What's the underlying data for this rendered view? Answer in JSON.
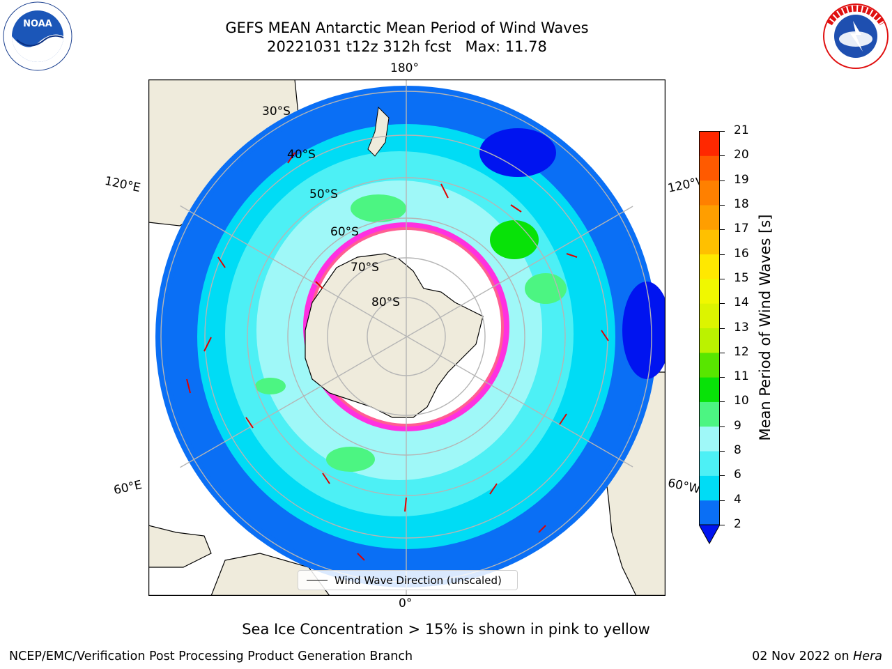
{
  "header": {
    "title_line1": "GEFS MEAN Antarctic Mean Period of Wind Waves",
    "title_line2": "20221031 t12z 312h fcst",
    "max_label": "Max: 11.78"
  },
  "logos": {
    "left": "NOAA",
    "right": "NATIONAL WEATHER SERVICE"
  },
  "map": {
    "longitude_labels": {
      "top": "180°",
      "bottom": "0°",
      "upper_left": "120°E",
      "lower_left": "60°E",
      "upper_right": "120°W",
      "lower_right": "60°W"
    },
    "latitude_labels": [
      "30°S",
      "40°S",
      "50°S",
      "60°S",
      "70°S",
      "80°S"
    ],
    "legend_label": "Wind Wave Direction (unscaled)"
  },
  "colorbar": {
    "label": "Mean Period of Wind Waves [s]",
    "ticks": [
      "2",
      "4",
      "6",
      "8",
      "9",
      "10",
      "11",
      "12",
      "13",
      "14",
      "15",
      "16",
      "17",
      "18",
      "19",
      "20",
      "21"
    ],
    "colors": [
      "#0a6ff5",
      "#00dcf5",
      "#4df0f5",
      "#9ff8f8",
      "#4cf582",
      "#08e208",
      "#58e600",
      "#bbf200",
      "#dcf400",
      "#f0f800",
      "#ffe800",
      "#ffc000",
      "#ff9e00",
      "#ff8000",
      "#ff5a00",
      "#ff2800"
    ],
    "under_color": "#0014f0"
  },
  "caption": "Sea Ice Concentration > 15% is shown in pink to yellow",
  "footer": {
    "left": "NCEP/EMC/Verification Post Processing Product Generation Branch",
    "right_date": "02 Nov 2022 on",
    "right_host": "Hera"
  }
}
